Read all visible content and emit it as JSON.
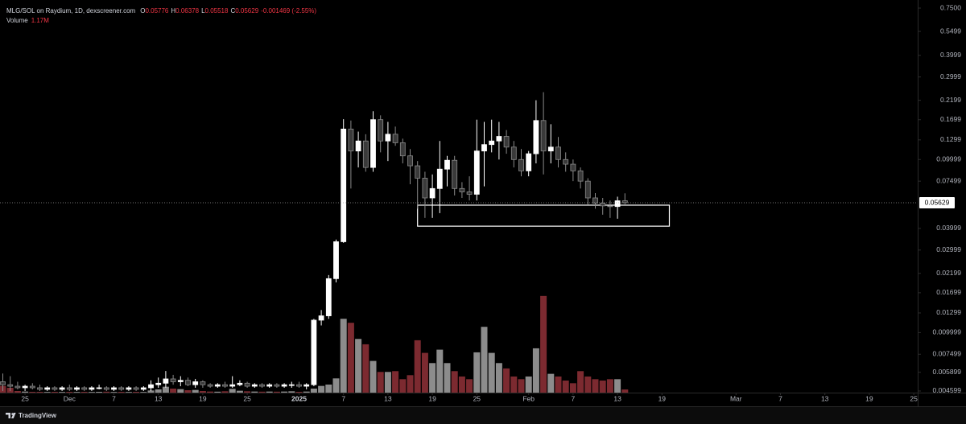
{
  "header": {
    "title": "MLG/SOL on Raydium, 1D, dexscreener.com",
    "ohlc_labels": [
      "O",
      "H",
      "L",
      "C"
    ],
    "change": "-0.001469 (-2.55%)",
    "volume_title": "Volume",
    "brand": "TradingView"
  },
  "chart_data": {
    "type": "candlestick",
    "log": true,
    "ylim": [
      0.0045,
      0.8
    ],
    "yticks": [
      {
        "value": 0.75,
        "label": "0.7500"
      },
      0.5499,
      0.3999,
      0.2999,
      0.2199,
      0.1699,
      0.1299,
      0.09999,
      0.07499,
      0.03999,
      0.02999,
      0.02199,
      0.01699,
      0.01299,
      0.009999,
      0.007499,
      0.005899,
      0.004599
    ],
    "volume_ylim": [
      0,
      145000000
    ],
    "volume_label": "1.17M",
    "up_color": "#ffffff",
    "down_color": "#3a3a3a",
    "down_stroke": "#8a8a8a",
    "up_volume_color": "#8c8c8c",
    "down_volume_color": "#7c2a30",
    "zone": {
      "from": "Jan 17",
      "to": "Feb 20",
      "high": 0.0545,
      "low": 0.0412,
      "color": "#ffffff"
    },
    "xticks": [
      {
        "value": "Nov 25",
        "label": "25"
      },
      {
        "value": "Dec 1",
        "label": "Dec"
      },
      {
        "value": "Dec 7",
        "label": "7"
      },
      {
        "value": "Dec 13",
        "label": "13"
      },
      {
        "value": "Dec 19",
        "label": "19"
      },
      {
        "value": "Dec 25",
        "label": "25"
      },
      {
        "value": "Jan 1",
        "label": "2025",
        "bold": true
      },
      {
        "value": "Jan 7",
        "label": "7"
      },
      {
        "value": "Jan 13",
        "label": "13"
      },
      {
        "value": "Jan 19",
        "label": "19"
      },
      {
        "value": "Jan 25",
        "label": "25"
      },
      {
        "value": "Feb 1",
        "label": "Feb"
      },
      {
        "value": "Feb 7",
        "label": "7"
      },
      {
        "value": "Feb 13",
        "label": "13"
      },
      {
        "value": "Feb 19",
        "label": "19"
      },
      {
        "value": "Mar 1",
        "label": "Mar"
      },
      {
        "value": "Mar 7",
        "label": "7"
      },
      {
        "value": "Mar 13",
        "label": "13"
      },
      {
        "value": "Mar 19",
        "label": "19"
      },
      {
        "value": "Mar 25",
        "label": "25"
      }
    ],
    "categories": [
      "Nov 22",
      "Nov 23",
      "Nov 24",
      "Nov 25",
      "Nov 26",
      "Nov 27",
      "Nov 28",
      "Nov 29",
      "Nov 30",
      "Dec 1",
      "Dec 2",
      "Dec 3",
      "Dec 4",
      "Dec 5",
      "Dec 6",
      "Dec 7",
      "Dec 8",
      "Dec 9",
      "Dec 10",
      "Dec 11",
      "Dec 12",
      "Dec 13",
      "Dec 14",
      "Dec 15",
      "Dec 16",
      "Dec 17",
      "Dec 18",
      "Dec 19",
      "Dec 20",
      "Dec 21",
      "Dec 22",
      "Dec 23",
      "Dec 24",
      "Dec 25",
      "Dec 26",
      "Dec 27",
      "Dec 28",
      "Dec 29",
      "Dec 30",
      "Dec 31",
      "Jan 1",
      "Jan 2",
      "Jan 3",
      "Jan 4",
      "Jan 5",
      "Jan 6",
      "Jan 7",
      "Jan 8",
      "Jan 9",
      "Jan 10",
      "Jan 11",
      "Jan 12",
      "Jan 13",
      "Jan 14",
      "Jan 15",
      "Jan 16",
      "Jan 17",
      "Jan 18",
      "Jan 19",
      "Jan 20",
      "Jan 21",
      "Jan 22",
      "Jan 23",
      "Jan 24",
      "Jan 25",
      "Jan 26",
      "Jan 27",
      "Jan 28",
      "Jan 29",
      "Jan 30",
      "Jan 31",
      "Feb 1",
      "Feb 2",
      "Feb 3",
      "Feb 4",
      "Feb 5",
      "Feb 6",
      "Feb 7",
      "Feb 8",
      "Feb 9",
      "Feb 10",
      "Feb 11",
      "Feb 12",
      "Feb 13",
      "Feb 14",
      "Feb 15",
      "Feb 16",
      "Feb 17",
      "Feb 18",
      "Feb 19",
      "Feb 20",
      "Feb 21",
      "Feb 22",
      "Feb 23",
      "Feb 24",
      "Feb 25",
      "Feb 26",
      "Feb 27",
      "Feb 28",
      "Mar 1",
      "Mar 2",
      "Mar 3",
      "Mar 4",
      "Mar 5",
      "Mar 6",
      "Mar 7",
      "Mar 8",
      "Mar 9",
      "Mar 10",
      "Mar 11",
      "Mar 12",
      "Mar 13",
      "Mar 14",
      "Mar 15",
      "Mar 16",
      "Mar 17",
      "Mar 18",
      "Mar 19",
      "Mar 20",
      "Mar 21",
      "Mar 22",
      "Mar 23",
      "Mar 24",
      "Mar 25"
    ],
    "open": [
      0.0052,
      0.005,
      0.0049,
      0.0048,
      0.0049,
      0.0048,
      0.0047,
      0.0048,
      0.0047,
      0.0048,
      0.0047,
      0.0048,
      0.0047,
      0.0048,
      0.0048,
      0.0047,
      0.0048,
      0.0047,
      0.0048,
      0.0047,
      0.0048,
      0.005,
      0.0051,
      0.0054,
      0.0052,
      0.0053,
      0.005,
      0.0052,
      0.005,
      0.0049,
      0.005,
      0.0049,
      0.005,
      0.0051,
      0.0049,
      0.005,
      0.0049,
      0.005,
      0.0049,
      0.005,
      0.005,
      0.0049,
      0.005,
      0.0118,
      0.0125,
      0.0205,
      0.0335,
      0.15,
      0.112,
      0.128,
      0.09,
      0.17,
      0.128,
      0.14,
      0.125,
      0.105,
      0.092,
      0.078,
      0.06,
      0.068,
      0.088,
      0.099,
      0.068,
      0.065,
      0.063,
      0.112,
      0.122,
      0.128,
      0.136,
      0.118,
      0.1,
      0.086,
      0.108,
      0.168,
      0.112,
      0.118,
      0.1,
      0.094,
      0.086,
      0.075,
      0.06,
      0.056,
      0.054,
      0.0535,
      0.05776,
      null,
      null,
      null,
      null,
      null,
      null,
      null,
      null,
      null,
      null,
      null,
      null,
      null,
      null,
      null,
      null,
      null,
      null,
      null,
      null,
      null,
      null,
      null,
      null,
      null,
      null,
      null,
      null,
      null,
      null,
      null,
      null,
      null,
      null,
      null,
      null,
      null,
      null,
      null
    ],
    "high": [
      0.0058,
      0.0056,
      0.0052,
      0.005,
      0.0051,
      0.005,
      0.0049,
      0.0049,
      0.0049,
      0.005,
      0.0049,
      0.0049,
      0.0049,
      0.005,
      0.0049,
      0.0049,
      0.0049,
      0.0049,
      0.0049,
      0.0049,
      0.0053,
      0.0055,
      0.006,
      0.0057,
      0.0056,
      0.0055,
      0.0054,
      0.0053,
      0.0051,
      0.0051,
      0.0052,
      0.0056,
      0.0053,
      0.0052,
      0.0051,
      0.0051,
      0.0051,
      0.0051,
      0.0051,
      0.0052,
      0.0052,
      0.0051,
      0.012,
      0.0135,
      0.0215,
      0.0345,
      0.171,
      0.168,
      0.145,
      0.14,
      0.19,
      0.18,
      0.165,
      0.155,
      0.132,
      0.115,
      0.098,
      0.085,
      0.082,
      0.128,
      0.105,
      0.105,
      0.074,
      0.08,
      0.17,
      0.165,
      0.17,
      0.165,
      0.148,
      0.128,
      0.115,
      0.112,
      0.22,
      0.245,
      0.16,
      0.135,
      0.11,
      0.1,
      0.09,
      0.078,
      0.064,
      0.06,
      0.058,
      0.061,
      0.06378,
      null,
      null,
      null,
      null,
      null,
      null,
      null,
      null,
      null,
      null,
      null,
      null,
      null,
      null,
      null,
      null,
      null,
      null,
      null,
      null,
      null,
      null,
      null,
      null,
      null,
      null,
      null,
      null,
      null,
      null,
      null,
      null,
      null,
      null,
      null,
      null,
      null,
      null,
      null
    ],
    "low": [
      0.0046,
      0.0046,
      0.0047,
      0.0046,
      0.0047,
      0.0046,
      0.0046,
      0.0046,
      0.0046,
      0.0046,
      0.0046,
      0.0046,
      0.0046,
      0.0047,
      0.0046,
      0.0046,
      0.0046,
      0.0046,
      0.0046,
      0.0046,
      0.0046,
      0.0048,
      0.0048,
      0.005,
      0.0049,
      0.0049,
      0.0048,
      0.0048,
      0.0048,
      0.0048,
      0.0048,
      0.0048,
      0.0049,
      0.0048,
      0.0048,
      0.0048,
      0.0048,
      0.0048,
      0.0048,
      0.0048,
      0.0048,
      0.0047,
      0.0049,
      0.011,
      0.012,
      0.0195,
      0.033,
      0.068,
      0.09,
      0.085,
      0.085,
      0.11,
      0.098,
      0.12,
      0.095,
      0.072,
      0.052,
      0.046,
      0.046,
      0.049,
      0.07,
      0.062,
      0.06,
      0.058,
      0.058,
      0.07,
      0.11,
      0.1,
      0.108,
      0.09,
      0.08,
      0.08,
      0.095,
      0.082,
      0.095,
      0.09,
      0.085,
      0.075,
      0.068,
      0.055,
      0.052,
      0.048,
      0.046,
      0.0455,
      0.05518,
      null,
      null,
      null,
      null,
      null,
      null,
      null,
      null,
      null,
      null,
      null,
      null,
      null,
      null,
      null,
      null,
      null,
      null,
      null,
      null,
      null,
      null,
      null,
      null,
      null,
      null,
      null,
      null,
      null,
      null,
      null,
      null,
      null,
      null,
      null,
      null,
      null,
      null,
      null
    ],
    "close": [
      0.005,
      0.0049,
      0.0048,
      0.0049,
      0.0048,
      0.0047,
      0.0048,
      0.0047,
      0.0048,
      0.0047,
      0.0048,
      0.0047,
      0.0048,
      0.0048,
      0.0047,
      0.0048,
      0.0047,
      0.0048,
      0.0047,
      0.0048,
      0.005,
      0.0051,
      0.0054,
      0.0052,
      0.0053,
      0.005,
      0.0052,
      0.005,
      0.0049,
      0.005,
      0.0049,
      0.005,
      0.0051,
      0.0049,
      0.005,
      0.0049,
      0.005,
      0.0049,
      0.005,
      0.005,
      0.0049,
      0.005,
      0.0118,
      0.0125,
      0.0205,
      0.0335,
      0.15,
      0.112,
      0.128,
      0.09,
      0.17,
      0.128,
      0.14,
      0.125,
      0.105,
      0.092,
      0.078,
      0.06,
      0.068,
      0.088,
      0.099,
      0.068,
      0.065,
      0.063,
      0.112,
      0.122,
      0.128,
      0.136,
      0.118,
      0.1,
      0.086,
      0.108,
      0.168,
      0.112,
      0.118,
      0.1,
      0.094,
      0.086,
      0.075,
      0.06,
      0.056,
      0.054,
      0.0535,
      0.05776,
      0.05629,
      null,
      null,
      null,
      null,
      null,
      null,
      null,
      null,
      null,
      null,
      null,
      null,
      null,
      null,
      null,
      null,
      null,
      null,
      null,
      null,
      null,
      null,
      null,
      null,
      null,
      null,
      null,
      null,
      null,
      null,
      null,
      null,
      null,
      null,
      null,
      null,
      null,
      null,
      null
    ],
    "volume": [
      2500000,
      1800000,
      600000,
      400000,
      300000,
      300000,
      250000,
      300000,
      250000,
      300000,
      250000,
      300000,
      250000,
      300000,
      350000,
      250000,
      300000,
      250000,
      300000,
      250000,
      800000,
      1200000,
      2200000,
      1500000,
      1300000,
      900000,
      1000000,
      600000,
      400000,
      350000,
      500000,
      1400000,
      700000,
      500000,
      400000,
      350000,
      400000,
      350000,
      400000,
      500000,
      300000,
      400000,
      1500000,
      2500000,
      3000000,
      5300000,
      27500000,
      26000000,
      20000000,
      18000000,
      11800000,
      7700000,
      7700000,
      8000000,
      5000000,
      6500000,
      19500000,
      14800000,
      11000000,
      16000000,
      11000000,
      8000000,
      6000000,
      5000000,
      15000000,
      24500000,
      14800000,
      11000000,
      9000000,
      6000000,
      5000000,
      6000000,
      16500000,
      36000000,
      7000000,
      6000000,
      4500000,
      3500000,
      8000000,
      6000000,
      5000000,
      4500000,
      5000000,
      5000000,
      1170000,
      null,
      null,
      null,
      null,
      null,
      null,
      null,
      null,
      null,
      null,
      null,
      null,
      null,
      null,
      null,
      null,
      null,
      null,
      null,
      null,
      null,
      null,
      null,
      null,
      null,
      null,
      null,
      null,
      null,
      null,
      null,
      null,
      null,
      null,
      null,
      null,
      null,
      null,
      null
    ]
  }
}
